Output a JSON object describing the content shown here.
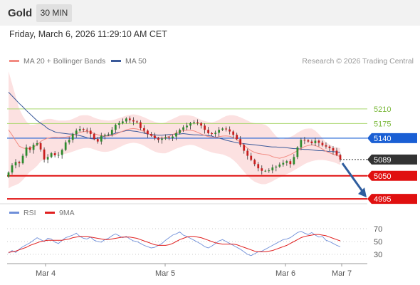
{
  "header": {
    "title": "Gold",
    "timeframe": "30 MIN"
  },
  "datetime": "Friday, March 6, 2026 11:29:10 AM CET",
  "legend": {
    "ma20": {
      "label": "MA 20 + Bollinger Bands",
      "color": "#f28b82"
    },
    "ma50": {
      "label": "MA 50",
      "color": "#3b5a9a"
    },
    "credit": "Research © 2026 Trading Central"
  },
  "rsi_legend": {
    "rsi": {
      "label": "RSI",
      "color": "#6f8fd9"
    },
    "ma": {
      "label": "9MA",
      "color": "#e02020"
    }
  },
  "chart_data": [
    {
      "type": "candlestick",
      "title": "Gold",
      "ylim": [
        4990,
        5300
      ],
      "levels": [
        {
          "label": "5210",
          "value": 5210,
          "kind": "resistance",
          "color": "#a8d66c"
        },
        {
          "label": "5175",
          "value": 5175,
          "kind": "resistance",
          "color": "#a8d66c"
        },
        {
          "label": "5140",
          "value": 5140,
          "kind": "pivot",
          "color": "#1a5fd4"
        },
        {
          "label": "5089",
          "value": 5089,
          "kind": "last",
          "color": "#333333"
        },
        {
          "label": "5050",
          "value": 5050,
          "kind": "support",
          "color": "#e01010"
        },
        {
          "label": "4995",
          "value": 4995,
          "kind": "support",
          "color": "#e01010"
        }
      ],
      "x_ticks": [
        "Mar 4",
        "Mar 5",
        "Mar 6",
        "Mar 7"
      ],
      "close_series": [
        5058,
        5075,
        5083,
        5080,
        5098,
        5118,
        5112,
        5124,
        5128,
        5113,
        5089,
        5095,
        5104,
        5099,
        5100,
        5112,
        5130,
        5136,
        5150,
        5158,
        5162,
        5160,
        5158,
        5150,
        5138,
        5132,
        5146,
        5148,
        5149,
        5160,
        5172,
        5176,
        5180,
        5187,
        5183,
        5180,
        5178,
        5164,
        5158,
        5150,
        5146,
        5140,
        5136,
        5139,
        5142,
        5140,
        5144,
        5152,
        5160,
        5166,
        5170,
        5176,
        5178,
        5176,
        5170,
        5160,
        5152,
        5150,
        5153,
        5160,
        5163,
        5161,
        5156,
        5148,
        5138,
        5124,
        5110,
        5098,
        5088,
        5078,
        5068,
        5062,
        5062,
        5063,
        5070,
        5072,
        5077,
        5081,
        5085,
        5078,
        5095,
        5118,
        5136,
        5135,
        5132,
        5128,
        5134,
        5129,
        5123,
        5120,
        5116,
        5110,
        5100,
        5089
      ],
      "ma50_series": [
        5250,
        5241,
        5232,
        5223,
        5215,
        5206,
        5198,
        5190,
        5182,
        5176,
        5170,
        5163,
        5159,
        5155,
        5153,
        5152,
        5151,
        5150,
        5150,
        5148,
        5146,
        5144,
        5141,
        5139,
        5138,
        5140,
        5142,
        5145,
        5147,
        5149,
        5152,
        5154,
        5156,
        5158,
        5158,
        5157,
        5156,
        5154,
        5152,
        5150,
        5149,
        5148,
        5147,
        5147,
        5148,
        5149,
        5149,
        5150,
        5150,
        5151,
        5150,
        5149,
        5148,
        5148,
        5147,
        5147,
        5146,
        5145,
        5142,
        5140,
        5138,
        5135,
        5133,
        5131,
        5129,
        5128,
        5127,
        5126,
        5125,
        5124,
        5123,
        5122,
        5121,
        5120,
        5119,
        5119,
        5118,
        5118,
        5117,
        5116,
        5115,
        5115,
        5114,
        5113,
        5113,
        5112,
        5111,
        5110,
        5110,
        5109,
        5108,
        5108,
        5107,
        5106
      ],
      "bb_upper": [
        5300,
        5270,
        5240,
        5210,
        5193,
        5180,
        5172,
        5172,
        5174,
        5180,
        5184,
        5186,
        5186,
        5184,
        5182,
        5182,
        5182,
        5183,
        5186,
        5190,
        5194,
        5195,
        5195,
        5193,
        5189,
        5186,
        5184,
        5183,
        5182,
        5183,
        5185,
        5188,
        5191,
        5194,
        5196,
        5197,
        5196,
        5193,
        5190,
        5186,
        5182,
        5179,
        5177,
        5176,
        5178,
        5182,
        5186,
        5190,
        5194,
        5195,
        5195,
        5194,
        5192,
        5188,
        5184,
        5181,
        5179,
        5178,
        5180,
        5184,
        5189,
        5193,
        5195,
        5195,
        5193,
        5190,
        5186,
        5182,
        5178,
        5176,
        5175,
        5174,
        5172,
        5166,
        5155,
        5145,
        5138,
        5138,
        5140,
        5143,
        5147,
        5153,
        5158,
        5162,
        5163,
        5163,
        5158,
        5150,
        5140,
        5130,
        5125,
        5120,
        5118,
        5116
      ],
      "bb_lower": [
        5020,
        5025,
        5028,
        5032,
        5040,
        5050,
        5060,
        5066,
        5074,
        5084,
        5090,
        5094,
        5097,
        5100,
        5101,
        5102,
        5103,
        5105,
        5108,
        5111,
        5114,
        5116,
        5117,
        5116,
        5113,
        5110,
        5108,
        5107,
        5108,
        5110,
        5114,
        5118,
        5122,
        5126,
        5128,
        5129,
        5128,
        5126,
        5122,
        5117,
        5112,
        5108,
        5105,
        5104,
        5104,
        5107,
        5111,
        5115,
        5118,
        5121,
        5123,
        5124,
        5123,
        5120,
        5116,
        5112,
        5109,
        5106,
        5104,
        5103,
        5101,
        5098,
        5094,
        5088,
        5080,
        5070,
        5060,
        5050,
        5042,
        5036,
        5032,
        5030,
        5030,
        5033,
        5037,
        5042,
        5046,
        5050,
        5054,
        5058,
        5063,
        5068,
        5073,
        5078,
        5082,
        5085,
        5087,
        5088,
        5088,
        5087,
        5085,
        5083,
        5080,
        5076
      ],
      "forecast_arrow": {
        "from": 5080,
        "to": 4995
      }
    },
    {
      "type": "line",
      "title": "RSI",
      "ylim": [
        20,
        80
      ],
      "y_ticks": [
        70,
        50,
        30
      ],
      "series": [
        {
          "name": "RSI",
          "values": [
            32,
            36,
            33,
            38,
            42,
            45,
            48,
            52,
            56,
            53,
            50,
            55,
            54,
            49,
            47,
            52,
            56,
            58,
            60,
            63,
            58,
            55,
            54,
            57,
            52,
            50,
            49,
            53,
            55,
            59,
            62,
            59,
            56,
            58,
            54,
            51,
            50,
            47,
            44,
            42,
            40,
            41,
            44,
            47,
            52,
            56,
            60,
            62,
            65,
            60,
            58,
            55,
            52,
            49,
            46,
            42,
            40,
            43,
            47,
            51,
            53,
            50,
            47,
            44,
            41,
            38,
            34,
            30,
            28,
            31,
            34,
            35,
            38,
            41,
            44,
            47,
            50,
            53,
            54,
            56,
            60,
            64,
            66,
            63,
            61,
            64,
            60,
            57,
            58,
            52,
            50,
            47,
            44,
            42
          ]
        },
        {
          "name": "9MA",
          "values": [
            33,
            34,
            35,
            37,
            39,
            41,
            44,
            46,
            48,
            50,
            51,
            52,
            52,
            52,
            52,
            52,
            53,
            54,
            56,
            57,
            58,
            58,
            58,
            57,
            56,
            55,
            54,
            53,
            53,
            54,
            55,
            56,
            57,
            57,
            57,
            56,
            55,
            53,
            51,
            49,
            47,
            45,
            44,
            44,
            44,
            45,
            47,
            50,
            53,
            55,
            57,
            58,
            58,
            57,
            56,
            54,
            52,
            50,
            48,
            47,
            46,
            46,
            46,
            46,
            45,
            43,
            41,
            39,
            37,
            35,
            34,
            34,
            34,
            35,
            36,
            38,
            40,
            42,
            44,
            47,
            50,
            53,
            56,
            58,
            59,
            60,
            61,
            61,
            60,
            59,
            57,
            55,
            53,
            51
          ]
        }
      ]
    }
  ]
}
